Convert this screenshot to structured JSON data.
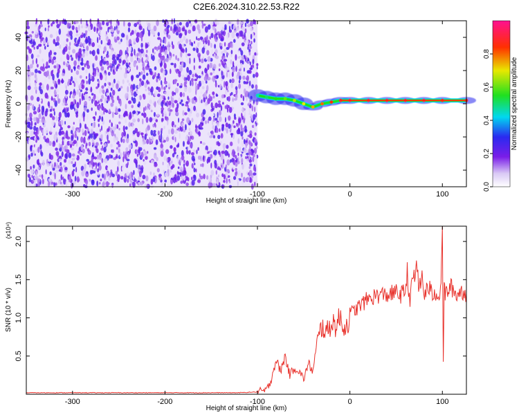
{
  "title": "C2E6.2024.310.22.53.R22",
  "colors": {
    "snr_line": "#e8302a",
    "spectro_background": "#ffffff"
  },
  "chart_data": [
    {
      "type": "heatmap",
      "title": "C2E6.2024.310.22.53.R22",
      "xlabel": "Height of straight line (km)",
      "ylabel": "Frequency (Hz)",
      "xlim": [
        -350,
        126
      ],
      "ylim": [
        -50,
        50
      ],
      "xticks": [
        -300,
        -200,
        -100,
        0,
        100
      ],
      "yticks": [
        -40,
        -20,
        0,
        20,
        40
      ],
      "colorbar": {
        "label": "Normalized spectral amplitude",
        "range": [
          0,
          1
        ],
        "ticks": [
          "0.0",
          "0.2",
          "0.4",
          "0.6",
          "0.8"
        ],
        "tick_values": [
          0.0,
          0.2,
          0.4,
          0.6,
          0.8
        ],
        "colormap": "rainbow (white-violet-blue-cyan-green-yellow-red-magenta)"
      },
      "noise_region": {
        "x_from": -350,
        "x_to": -100,
        "freq_from": -50,
        "freq_to": 50,
        "level": 0.2
      },
      "signal_ridge": {
        "x": [
          -100,
          -90,
          -80,
          -70,
          -60,
          -50,
          -40,
          -30,
          -20,
          -10,
          0,
          20,
          40,
          60,
          80,
          100,
          126
        ],
        "freq": [
          5,
          4,
          3,
          3,
          2,
          0,
          -2,
          0,
          1,
          2,
          2,
          2,
          2,
          2,
          2,
          2,
          2
        ],
        "amplitude": [
          0.45,
          0.5,
          0.55,
          0.6,
          0.65,
          0.7,
          0.75,
          0.8,
          0.85,
          0.9,
          0.95,
          0.95,
          0.95,
          0.95,
          0.95,
          0.9,
          0.9
        ]
      }
    },
    {
      "type": "line",
      "title": "",
      "xlabel": "Height of straight line (km)",
      "ylabel": "SNR (10 * v/v)",
      "multiplier_label": "(x10⁴)",
      "xlim": [
        -350,
        126
      ],
      "ylim": [
        0,
        2.2
      ],
      "xticks": [
        -300,
        -200,
        -100,
        0,
        100
      ],
      "yticks": [
        0.5,
        1.0,
        1.5,
        2.0
      ],
      "ytick_labels": [
        "0.5",
        "1.0",
        "1.5",
        "2.0"
      ],
      "series": [
        {
          "name": "SNR",
          "x": [
            -350,
            -300,
            -200,
            -120,
            -100,
            -90,
            -85,
            -80,
            -75,
            -70,
            -65,
            -60,
            -55,
            -50,
            -45,
            -40,
            -35,
            -30,
            -25,
            -20,
            -15,
            -10,
            -5,
            0,
            10,
            20,
            30,
            40,
            50,
            55,
            60,
            62,
            65,
            68,
            70,
            72,
            75,
            78,
            80,
            85,
            90,
            95,
            97,
            98,
            99,
            100,
            101,
            102,
            103,
            105,
            110,
            115,
            120,
            126
          ],
          "y": [
            0.02,
            0.02,
            0.02,
            0.02,
            0.03,
            0.05,
            0.2,
            0.45,
            0.3,
            0.5,
            0.25,
            0.35,
            0.3,
            0.2,
            0.4,
            0.3,
            0.7,
            0.9,
            0.8,
            0.95,
            0.9,
            1.0,
            0.85,
            1.05,
            1.15,
            1.25,
            1.3,
            1.3,
            1.33,
            1.3,
            1.35,
            1.6,
            1.2,
            1.55,
            1.5,
            1.75,
            1.35,
            1.55,
            1.3,
            1.4,
            1.3,
            1.35,
            1.2,
            1.5,
            1.6,
            2.2,
            0.45,
            1.4,
            1.3,
            1.35,
            1.4,
            1.3,
            1.35,
            1.32
          ]
        }
      ]
    }
  ]
}
